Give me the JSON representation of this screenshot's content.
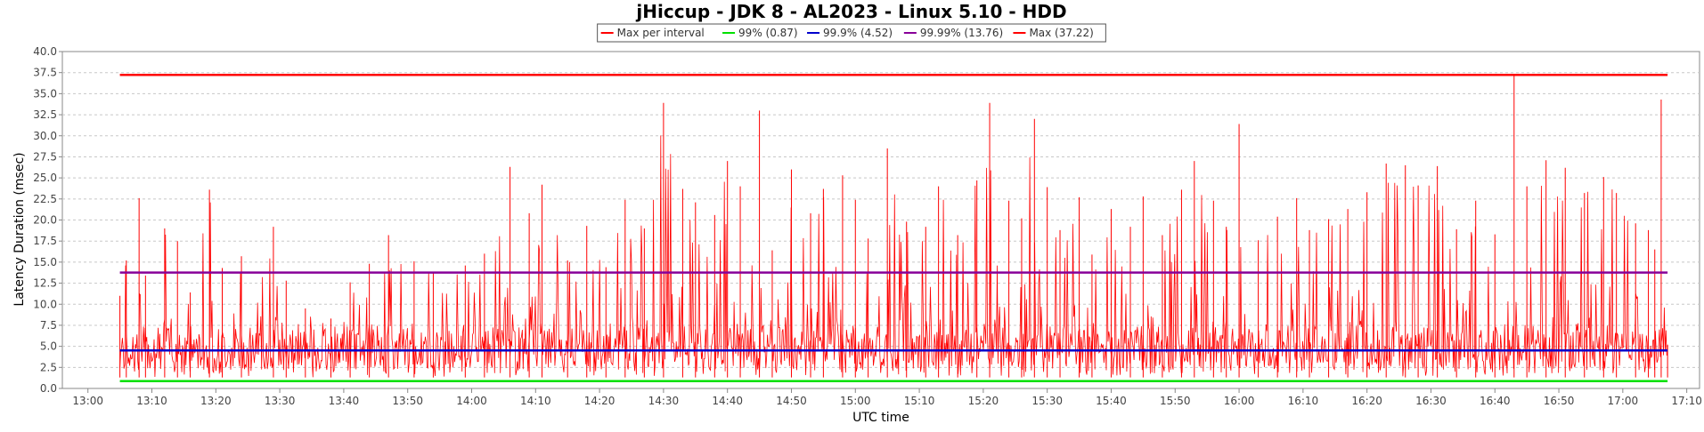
{
  "chart_data": {
    "type": "line",
    "title": "jHiccup - JDK 8 - AL2023 - Linux 5.10 - HDD",
    "xlabel": "UTC time",
    "ylabel": "Latency Duration (msec)",
    "ylim": [
      0,
      40
    ],
    "xlim": [
      "12:56",
      "17:12"
    ],
    "x_ticks": [
      "13:00",
      "13:10",
      "13:20",
      "13:30",
      "13:40",
      "13:50",
      "14:00",
      "14:10",
      "14:20",
      "14:30",
      "14:40",
      "14:50",
      "15:00",
      "15:10",
      "15:20",
      "15:30",
      "15:40",
      "15:50",
      "16:00",
      "16:10",
      "16:20",
      "16:30",
      "16:40",
      "16:50",
      "17:00",
      "17:10"
    ],
    "y_ticks": [
      "0.0",
      "2.5",
      "5.0",
      "7.5",
      "10.0",
      "12.5",
      "15.0",
      "17.5",
      "20.0",
      "22.5",
      "25.0",
      "27.5",
      "30.0",
      "32.5",
      "35.0",
      "37.5",
      "40.0"
    ],
    "grid": true,
    "legend_position": "top",
    "series_colors": {
      "max_per_interval": "#ff0000",
      "p99": "#00e000",
      "p999": "#0000cc",
      "p9999": "#880099",
      "max": "#ff0000"
    },
    "legend": [
      {
        "label": "Max per interval",
        "color": "#ff0000"
      },
      {
        "label": "99% (0.87)",
        "color": "#00e000"
      },
      {
        "label": "99.9% (4.52)",
        "color": "#0000cc"
      },
      {
        "label": "99.99% (13.76)",
        "color": "#880099"
      },
      {
        "label": "Max (37.22)",
        "color": "#ff0000"
      }
    ],
    "series": [
      {
        "name": "99% (0.87)",
        "x": [
          "13:05",
          "17:07"
        ],
        "values": [
          0.87,
          0.87
        ]
      },
      {
        "name": "99.9% (4.52)",
        "x": [
          "13:05",
          "17:07"
        ],
        "values": [
          4.52,
          4.52
        ]
      },
      {
        "name": "99.99% (13.76)",
        "x": [
          "13:05",
          "17:07"
        ],
        "values": [
          13.76,
          13.76
        ]
      },
      {
        "name": "Max (37.22)",
        "x": [
          "13:05",
          "17:07"
        ],
        "values": [
          37.22,
          37.22
        ]
      },
      {
        "name": "Max per interval",
        "x": [
          "13:05",
          "13:06",
          "13:08",
          "13:09",
          "13:12",
          "13:14",
          "13:16",
          "13:19",
          "13:21",
          "13:24",
          "13:29",
          "13:31",
          "13:34",
          "13:38",
          "13:41",
          "13:44",
          "13:47",
          "13:51",
          "13:54",
          "13:59",
          "14:02",
          "14:06",
          "14:09",
          "14:11",
          "14:15",
          "14:18",
          "14:21",
          "14:24",
          "14:27",
          "14:30",
          "14:33",
          "14:35",
          "14:38",
          "14:40",
          "14:42",
          "14:45",
          "14:47",
          "14:50",
          "14:53",
          "14:55",
          "14:58",
          "15:00",
          "15:02",
          "15:05",
          "15:08",
          "15:11",
          "15:13",
          "15:16",
          "15:19",
          "15:21",
          "15:24",
          "15:26",
          "15:28",
          "15:30",
          "15:32",
          "15:35",
          "15:37",
          "15:40",
          "15:43",
          "15:45",
          "15:48",
          "15:51",
          "15:53",
          "15:56",
          "15:58",
          "16:00",
          "16:03",
          "16:06",
          "16:09",
          "16:11",
          "16:14",
          "16:17",
          "16:20",
          "16:23",
          "16:26",
          "16:28",
          "16:31",
          "16:34",
          "16:37",
          "16:40",
          "16:43",
          "16:45",
          "16:48",
          "16:51",
          "16:54",
          "16:57",
          "16:59",
          "17:02",
          "17:04",
          "17:05",
          "17:06",
          "17:07"
        ],
        "values": [
          11.0,
          15.2,
          22.6,
          13.4,
          19.0,
          17.5,
          11.4,
          23.6,
          14.3,
          15.7,
          19.2,
          12.8,
          9.5,
          8.3,
          12.6,
          14.8,
          18.2,
          15.1,
          13.7,
          14.6,
          16.0,
          26.3,
          20.8,
          24.2,
          15.2,
          19.3,
          14.4,
          22.4,
          19.0,
          33.9,
          23.7,
          22.1,
          20.6,
          27.0,
          24.0,
          33.0,
          16.4,
          26.0,
          20.8,
          23.7,
          25.3,
          22.4,
          17.8,
          28.5,
          19.8,
          19.2,
          24.0,
          18.2,
          24.7,
          33.9,
          22.3,
          20.2,
          32.0,
          23.9,
          18.8,
          22.7,
          15.9,
          21.3,
          19.2,
          22.8,
          18.2,
          23.6,
          27.0,
          22.3,
          19.2,
          31.4,
          17.6,
          20.4,
          22.6,
          18.8,
          20.1,
          21.3,
          23.3,
          26.7,
          26.5,
          24.1,
          26.4,
          18.9,
          22.3,
          18.3,
          37.2,
          24.0,
          27.1,
          26.2,
          23.2,
          25.1,
          23.2,
          19.6,
          18.8,
          16.5,
          34.3,
          5.2
        ]
      }
    ]
  }
}
